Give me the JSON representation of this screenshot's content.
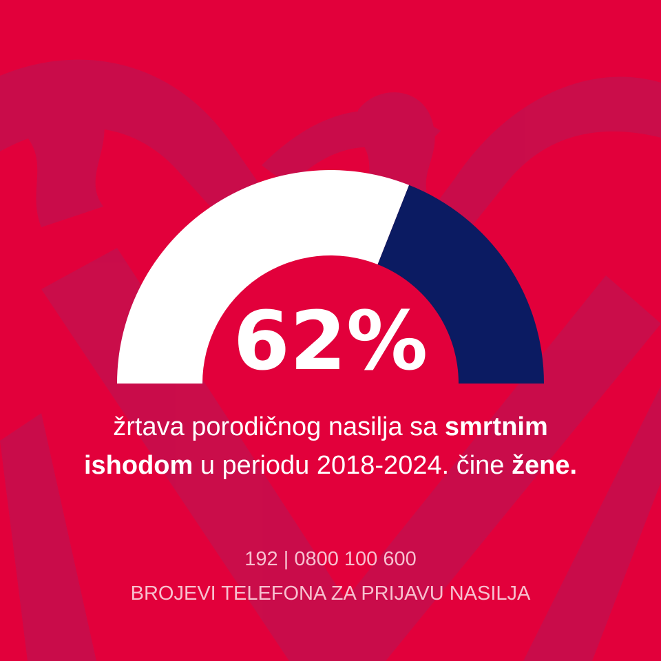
{
  "colors": {
    "background": "#e2003b",
    "women_segment": "#ffffff",
    "other_segment": "#0b1b62",
    "text": "#ffffff",
    "footer_text": "#f7c0cf",
    "pattern": "#b61757"
  },
  "chart_data": {
    "type": "gauge",
    "segments": [
      {
        "value": 62
      },
      {
        "value": 38
      }
    ],
    "label": "62%"
  },
  "caption": {
    "line1_regular": "žrtava porodičnog nasilja sa ",
    "line1_bold": "smrtnim",
    "line2_bold": "ishodom",
    "line2_regular": " u periodu 2018-2024. čine ",
    "line2_bold_end": "žene."
  },
  "footer": {
    "hotlines": "192 | 0800 100 600",
    "label": "BROJEVI TELEFONA ZA PRIJAVU NASILJA"
  }
}
